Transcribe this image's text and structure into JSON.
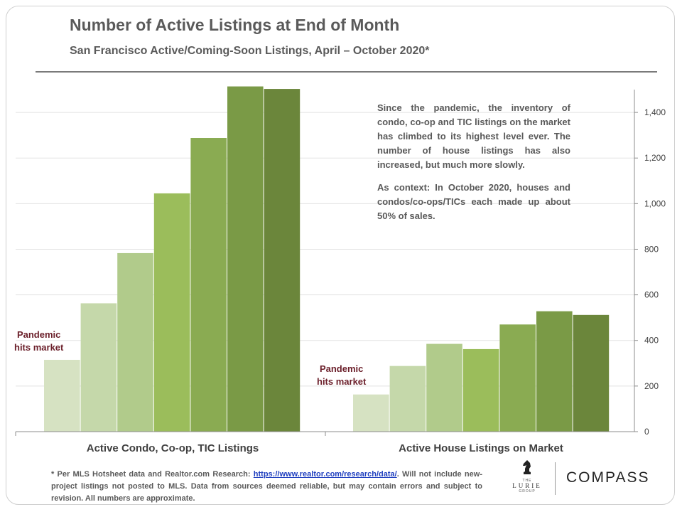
{
  "chart_data": {
    "type": "bar",
    "title": "Number of Active Listings at End of Month",
    "subtitle": "San Francisco Active/Coming-Soon Listings, April – October 2020*",
    "categories": [
      "Active Condo, Co-op, TIC Listings",
      "Active House Listings on Market"
    ],
    "series": [
      {
        "values": [
          315,
          163
        ]
      },
      {
        "values": [
          563,
          288
        ]
      },
      {
        "values": [
          783,
          385
        ]
      },
      {
        "values": [
          1045,
          362
        ]
      },
      {
        "values": [
          1288,
          470
        ]
      },
      {
        "values": [
          1514,
          528
        ]
      },
      {
        "values": [
          1503,
          512
        ]
      }
    ],
    "series_colors": [
      "#d6e2c2",
      "#c5d8aa",
      "#b1cb8b",
      "#9bbd5b",
      "#8aab52",
      "#7a9a46",
      "#6b863b"
    ],
    "yticks": [
      "0",
      "200",
      "400",
      "600",
      "800",
      "1,000",
      "1,200",
      "1,400"
    ],
    "ylim": [
      0,
      1550
    ],
    "yaxis_position": "right",
    "grid": true,
    "annotations": [
      "Pandemic hits market",
      "Pandemic hits market"
    ]
  },
  "annotation": {
    "paragraphs": [
      "Since the pandemic, the inventory of condo, co-op and TIC listings on the market has climbed to its highest level ever. The number of house listings has also increased, but much more slowly.",
      "As context: In October 2020, houses and condos/co-ops/TICs each made up about 50% of sales."
    ]
  },
  "notes": {
    "left_line1": "Pandemic",
    "left_line2": "hits market",
    "right_line1": "Pandemic",
    "right_line2": "hits market"
  },
  "footnote": {
    "before": "* Per MLS Hotsheet data and Realtor.com Research: ",
    "link": "https://www.realtor.com/research/data/",
    "after": ". Will not include new-project listings not posted to MLS. Data from sources deemed reliable, but may contain errors and subject to revision. All numbers are approximate."
  },
  "logos": {
    "lurie_top": "THE",
    "lurie_name": "LURIE",
    "lurie_bottom": "GROUP",
    "compass": "COMPASS"
  }
}
